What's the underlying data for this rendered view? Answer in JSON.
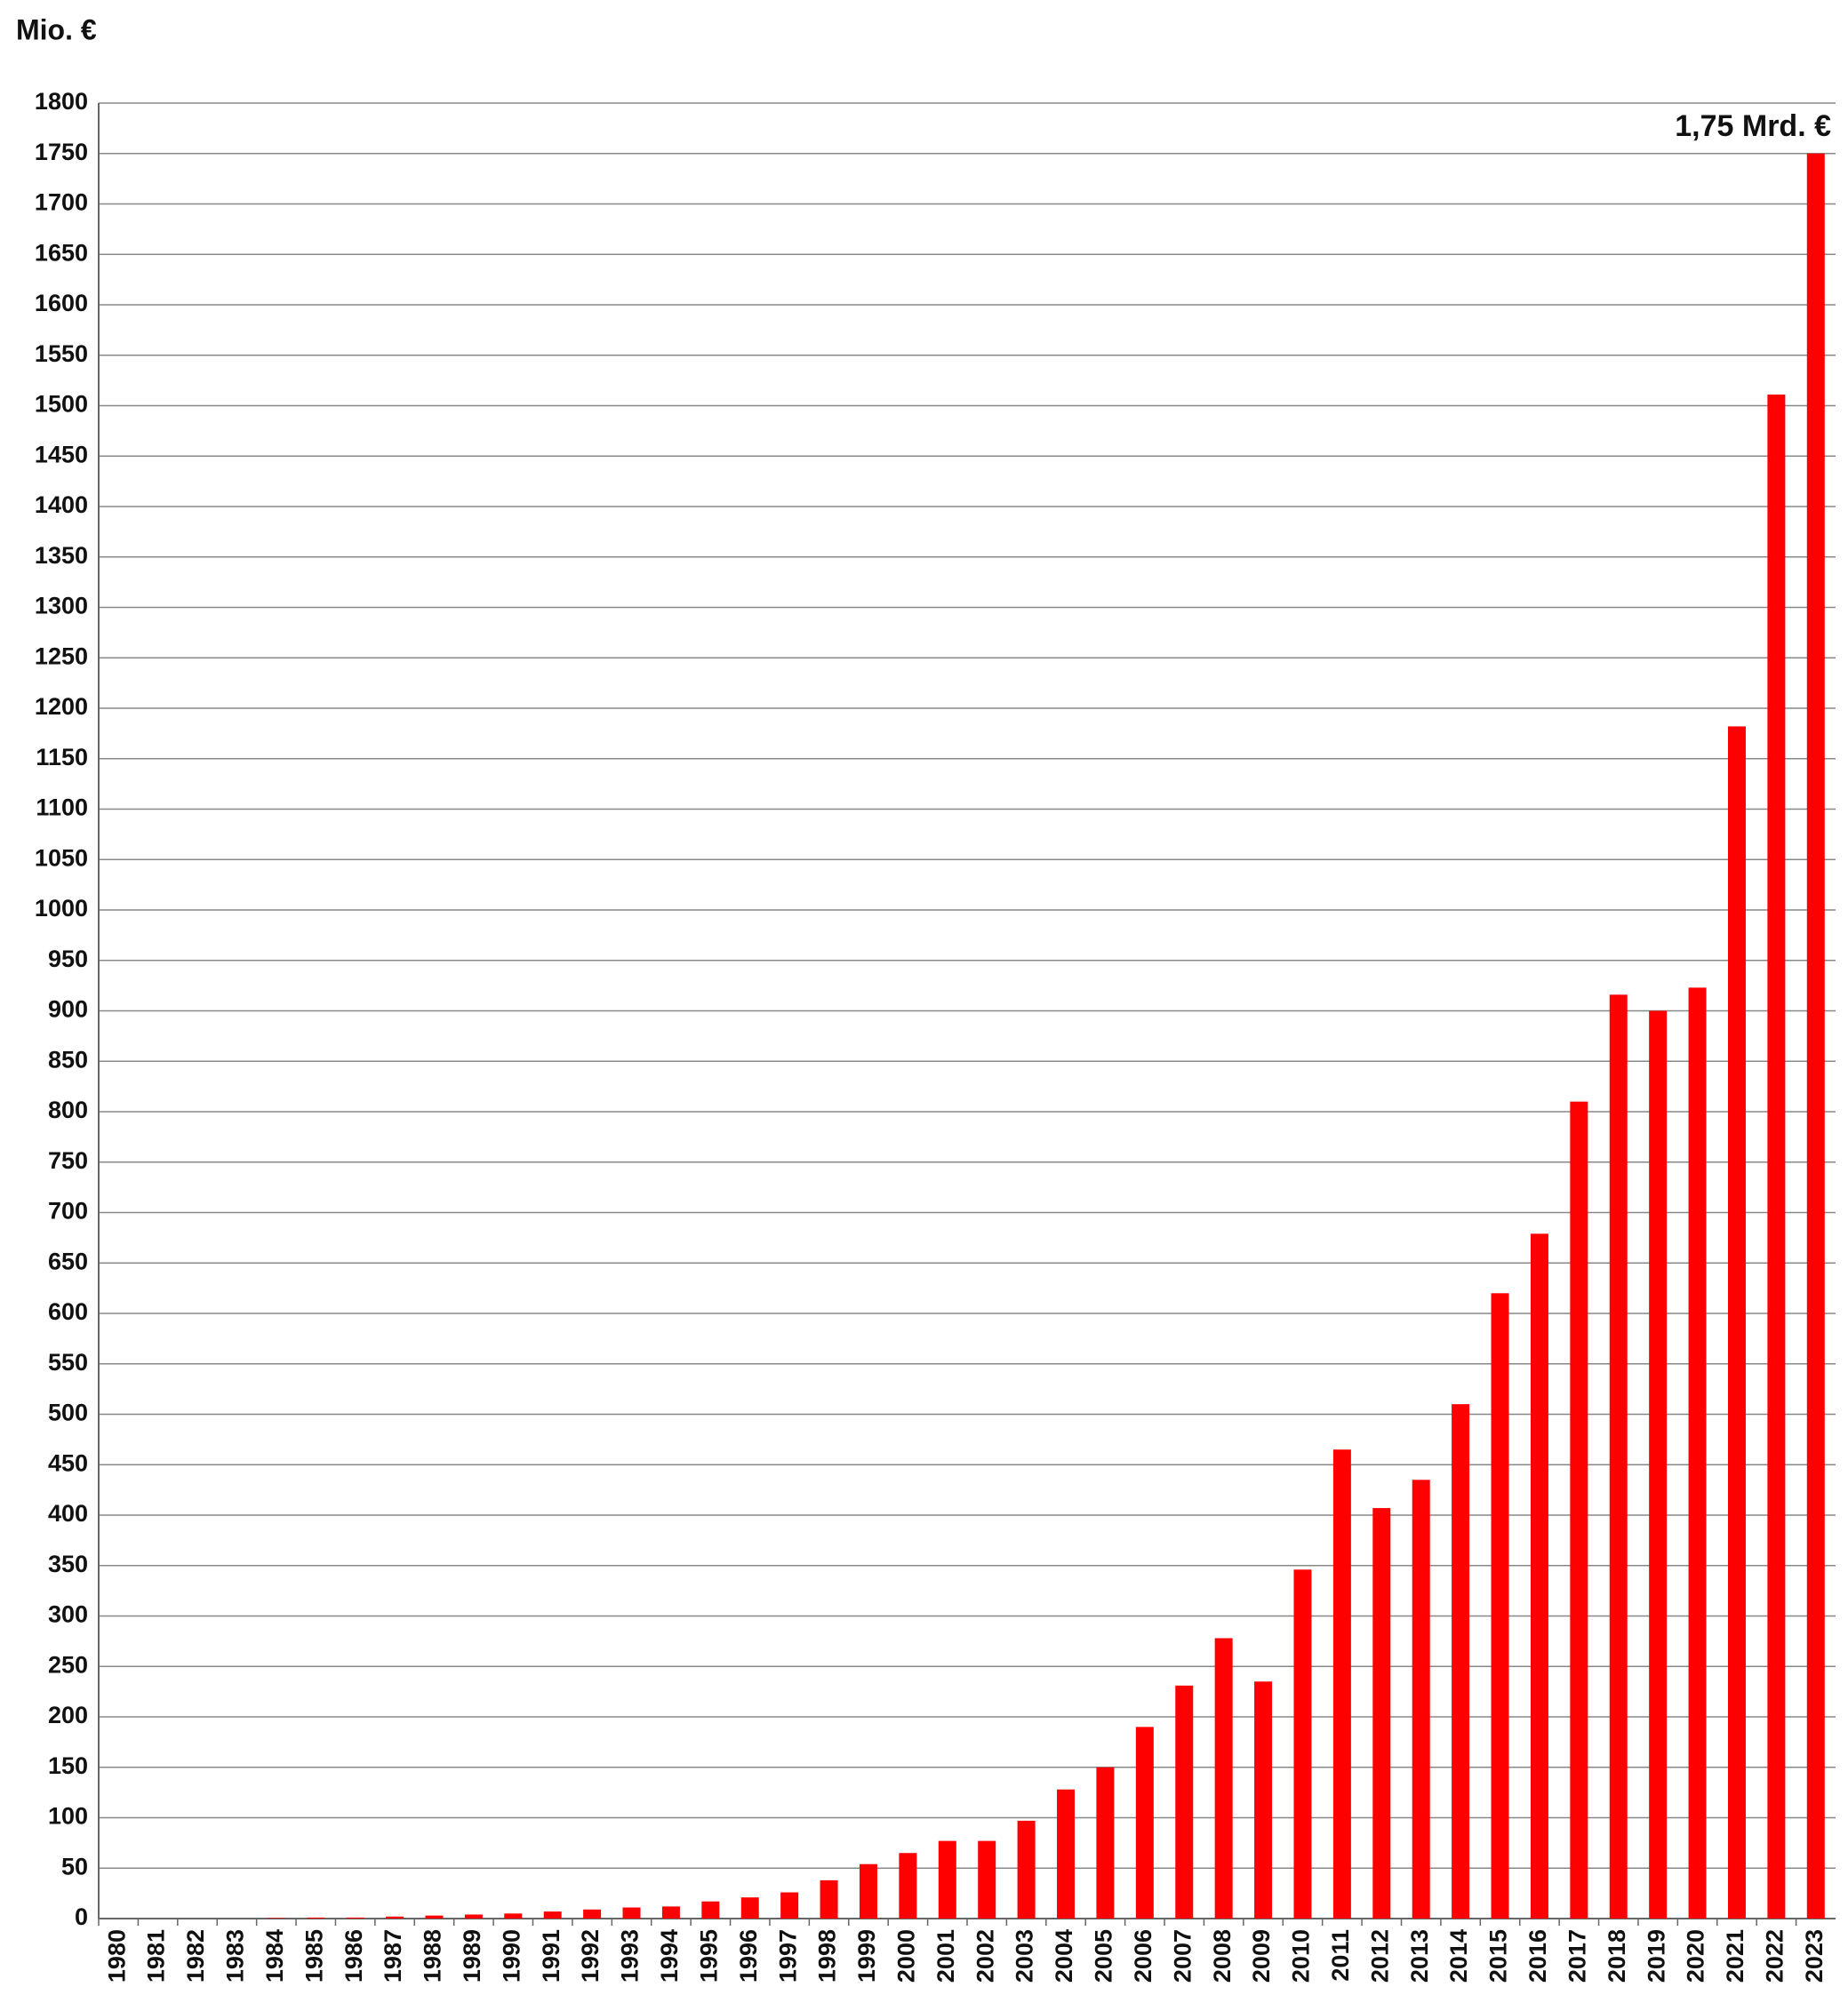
{
  "chart_data": {
    "type": "bar",
    "title": "Mio. €",
    "annotation": "1,75 Mrd. €",
    "categories": [
      "1980",
      "1981",
      "1982",
      "1983",
      "1984",
      "1985",
      "1986",
      "1987",
      "1988",
      "1989",
      "1990",
      "1991",
      "1992",
      "1993",
      "1994",
      "1995",
      "1996",
      "1997",
      "1998",
      "1999",
      "2000",
      "2001",
      "2002",
      "2003",
      "2004",
      "2005",
      "2006",
      "2007",
      "2008",
      "2009",
      "2010",
      "2011",
      "2012",
      "2013",
      "2014",
      "2015",
      "2016",
      "2017",
      "2018",
      "2019",
      "2020",
      "2021",
      "2022",
      "2023"
    ],
    "values": [
      0,
      0,
      0,
      0,
      0.5,
      1,
      1,
      2,
      3,
      4,
      5,
      7,
      9,
      11,
      12,
      17,
      21,
      26,
      38,
      54,
      65,
      77,
      77,
      97,
      128,
      150,
      190,
      231,
      278,
      235,
      346,
      465,
      407,
      435,
      510,
      620,
      679,
      810,
      916,
      900,
      923,
      1182,
      1511,
      1750
    ],
    "color": "#ff0000",
    "ylim": [
      0,
      1800
    ],
    "yticks": [
      0,
      50,
      100,
      150,
      200,
      250,
      300,
      350,
      400,
      450,
      500,
      550,
      600,
      650,
      700,
      750,
      800,
      850,
      900,
      950,
      1000,
      1050,
      1100,
      1150,
      1200,
      1250,
      1300,
      1350,
      1400,
      1450,
      1500,
      1550,
      1600,
      1650,
      1700,
      1750,
      1800
    ],
    "grid": true
  }
}
